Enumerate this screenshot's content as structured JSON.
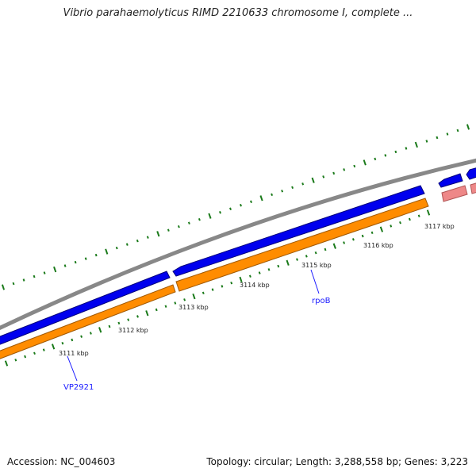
{
  "title": "Vibrio parahaemolyticus RIMD 2210633 chromosome I, complete ...",
  "accession": "Accession: NC_004603",
  "topology": "Topology: circular; Length: 3,288,558 bp; Genes: 3,223",
  "scale_labels": [
    "3111 kbp",
    "3112 kbp",
    "3113 kbp",
    "3114 kbp",
    "3115 kbp",
    "3116 kbp",
    "3117 kbp"
  ],
  "gene_labels": [
    "VP2921",
    "rpoB"
  ],
  "colors": {
    "backbone": "#888888",
    "forward_gene": "#0000ee",
    "reverse_gene": "#ff8c00",
    "rrna_gene": "#ee8888",
    "tick": "#1a7a1a",
    "gene_label": "#1a1aff"
  }
}
